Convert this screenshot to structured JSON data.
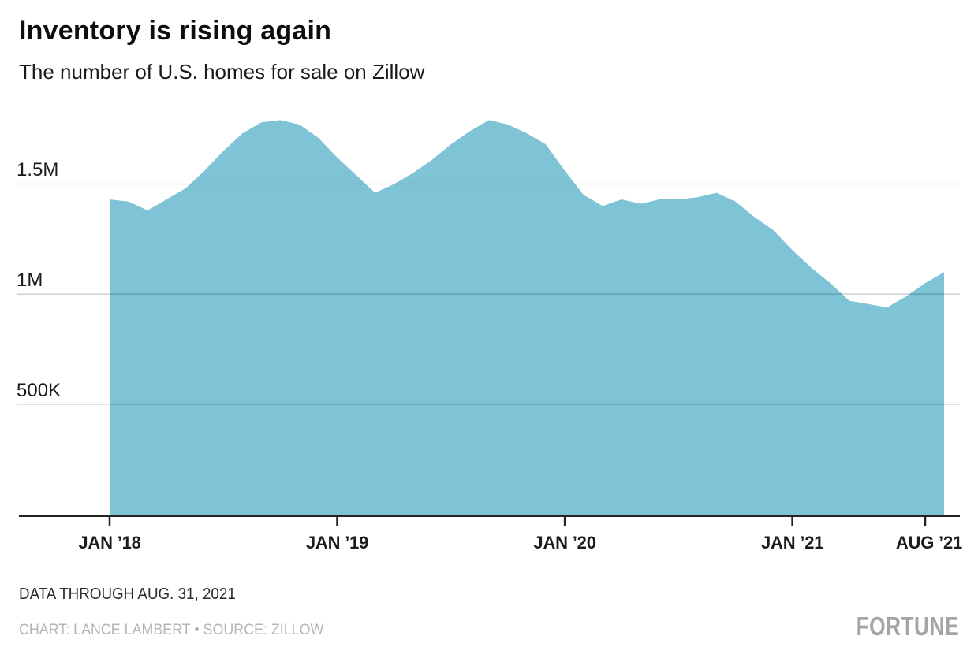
{
  "header": {
    "title": "Inventory is rising again",
    "subtitle": "The number of U.S. homes for sale on Zillow"
  },
  "chart_data": {
    "type": "area",
    "title": "Inventory is rising again",
    "subtitle": "The number of U.S. homes for sale on Zillow",
    "series": [
      {
        "name": "U.S. homes for sale on Zillow",
        "unit": "homes (millions)",
        "x": [
          "2018-01",
          "2018-02",
          "2018-03",
          "2018-04",
          "2018-05",
          "2018-06",
          "2018-07",
          "2018-08",
          "2018-09",
          "2018-10",
          "2018-11",
          "2018-12",
          "2019-01",
          "2019-02",
          "2019-03",
          "2019-04",
          "2019-05",
          "2019-06",
          "2019-07",
          "2019-08",
          "2019-09",
          "2019-10",
          "2019-11",
          "2019-12",
          "2020-01",
          "2020-02",
          "2020-03",
          "2020-04",
          "2020-05",
          "2020-06",
          "2020-07",
          "2020-08",
          "2020-09",
          "2020-10",
          "2020-11",
          "2020-12",
          "2021-01",
          "2021-02",
          "2021-03",
          "2021-04",
          "2021-05",
          "2021-06",
          "2021-07",
          "2021-08",
          "2021-08-31"
        ],
        "values_millions": [
          1.43,
          1.42,
          1.38,
          1.43,
          1.48,
          1.56,
          1.65,
          1.73,
          1.78,
          1.79,
          1.77,
          1.71,
          1.62,
          1.54,
          1.46,
          1.5,
          1.55,
          1.61,
          1.68,
          1.74,
          1.79,
          1.77,
          1.73,
          1.68,
          1.56,
          1.45,
          1.4,
          1.43,
          1.41,
          1.43,
          1.43,
          1.44,
          1.46,
          1.42,
          1.35,
          1.29,
          1.2,
          1.12,
          1.05,
          0.97,
          0.955,
          0.94,
          0.99,
          1.05,
          1.1
        ]
      }
    ],
    "ylim": [
      0,
      1.85
    ],
    "grid": "horizontal",
    "legend": "none",
    "y_ticks": [
      {
        "label": "1.5M",
        "value": 1.5
      },
      {
        "label": "1M",
        "value": 1.0
      },
      {
        "label": "500K",
        "value": 0.5
      }
    ],
    "x_ticks": [
      {
        "label": "JAN ’18",
        "index": 0
      },
      {
        "label": "JAN ’19",
        "index": 12
      },
      {
        "label": "JAN ’20",
        "index": 24
      },
      {
        "label": "JAN ’21",
        "index": 36
      },
      {
        "label": "AUG ’21",
        "index": 43
      }
    ],
    "area_color": "#7FC3D6",
    "axis_color": "#232323",
    "gridline_color": "rgba(0,0,0,0.2)"
  },
  "footer": {
    "note": "DATA THROUGH AUG. 31, 2021",
    "credit": "CHART: LANCE LAMBERT • SOURCE: ZILLOW",
    "brand": "FORTUNE"
  }
}
